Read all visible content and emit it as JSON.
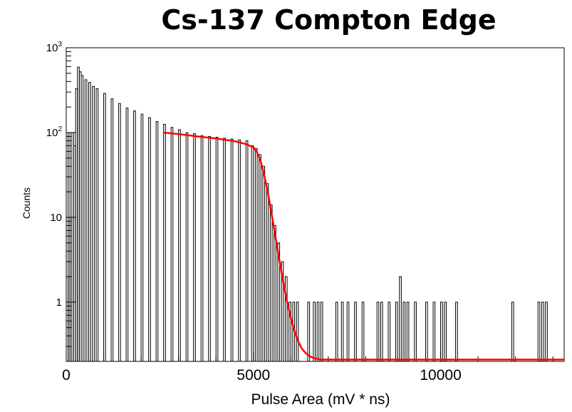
{
  "chart_data": {
    "type": "line",
    "title": "Cs-137 Compton Edge",
    "xlabel": "Pulse Area (mV * ns)",
    "ylabel": "Counts",
    "xlim": [
      0,
      13300
    ],
    "ylim": [
      0.2,
      1000
    ],
    "y_scale": "log",
    "x_ticks": [
      {
        "value": 0,
        "label": "0"
      },
      {
        "value": 5000,
        "label": "5000"
      },
      {
        "value": 10000,
        "label": "10000"
      }
    ],
    "y_ticks": [
      {
        "value": 1,
        "base": "1",
        "exp": ""
      },
      {
        "value": 10,
        "base": "10",
        "exp": ""
      },
      {
        "value": 100,
        "base": "10",
        "exp": "2"
      },
      {
        "value": 1000,
        "base": "10",
        "exp": "3"
      }
    ],
    "series": [
      {
        "kind": "histogram",
        "color": "#000000",
        "bin_width": 50,
        "values": [
          [
            0,
            2
          ],
          [
            50,
            100
          ],
          [
            100,
            10
          ],
          [
            150,
            100
          ],
          [
            200,
            70
          ],
          [
            250,
            330
          ],
          [
            300,
            590
          ],
          [
            350,
            520
          ],
          [
            400,
            470
          ],
          [
            500,
            420
          ],
          [
            600,
            390
          ],
          [
            700,
            350
          ],
          [
            800,
            330
          ],
          [
            1000,
            290
          ],
          [
            1200,
            250
          ],
          [
            1400,
            220
          ],
          [
            1600,
            195
          ],
          [
            1800,
            180
          ],
          [
            2000,
            165
          ],
          [
            2200,
            150
          ],
          [
            2400,
            135
          ],
          [
            2600,
            125
          ],
          [
            2800,
            115
          ],
          [
            3000,
            108
          ],
          [
            3200,
            100
          ],
          [
            3400,
            97
          ],
          [
            3600,
            92
          ],
          [
            3800,
            90
          ],
          [
            4000,
            88
          ],
          [
            4200,
            86
          ],
          [
            4400,
            84
          ],
          [
            4600,
            82
          ],
          [
            4800,
            80
          ],
          [
            4950,
            70
          ],
          [
            5050,
            65
          ],
          [
            5150,
            55
          ],
          [
            5250,
            40
          ],
          [
            5350,
            25
          ],
          [
            5450,
            14
          ],
          [
            5550,
            8
          ],
          [
            5650,
            5
          ],
          [
            5750,
            3
          ],
          [
            5850,
            2
          ],
          [
            5950,
            1
          ],
          [
            6050,
            1
          ],
          [
            6150,
            1
          ],
          [
            6450,
            1
          ],
          [
            6600,
            1
          ],
          [
            6700,
            1
          ],
          [
            6800,
            1
          ],
          [
            7200,
            1
          ],
          [
            7350,
            1
          ],
          [
            7500,
            1
          ],
          [
            7700,
            1
          ],
          [
            7900,
            1
          ],
          [
            8300,
            1
          ],
          [
            8400,
            1
          ],
          [
            8600,
            1
          ],
          [
            8800,
            1
          ],
          [
            8900,
            2
          ],
          [
            9000,
            1
          ],
          [
            9100,
            1
          ],
          [
            9300,
            1
          ],
          [
            9600,
            1
          ],
          [
            9800,
            1
          ],
          [
            10000,
            1
          ],
          [
            10100,
            1
          ],
          [
            10400,
            1
          ],
          [
            11900,
            1
          ],
          [
            12600,
            1
          ],
          [
            12700,
            1
          ],
          [
            12800,
            1
          ]
        ]
      },
      {
        "kind": "fit",
        "color": "#ff0000",
        "x": [
          2600,
          3000,
          3500,
          4000,
          4500,
          4800,
          5000,
          5100,
          5200,
          5300,
          5400,
          5500,
          5600,
          5700,
          5800,
          5900,
          6000,
          6100,
          6200,
          6300,
          6400,
          6500,
          6600,
          6700,
          6800,
          6900,
          7000,
          7200,
          7500,
          8000,
          9000,
          10000,
          11000,
          12000,
          13000,
          13300
        ],
        "y": [
          100,
          96,
          90,
          85,
          79,
          73,
          67,
          58,
          45,
          30,
          18,
          10,
          5.5,
          3.0,
          1.7,
          1.0,
          0.65,
          0.45,
          0.34,
          0.28,
          0.25,
          0.23,
          0.22,
          0.215,
          0.21,
          0.21,
          0.21,
          0.21,
          0.21,
          0.21,
          0.21,
          0.21,
          0.21,
          0.21,
          0.21,
          0.21
        ]
      }
    ]
  }
}
